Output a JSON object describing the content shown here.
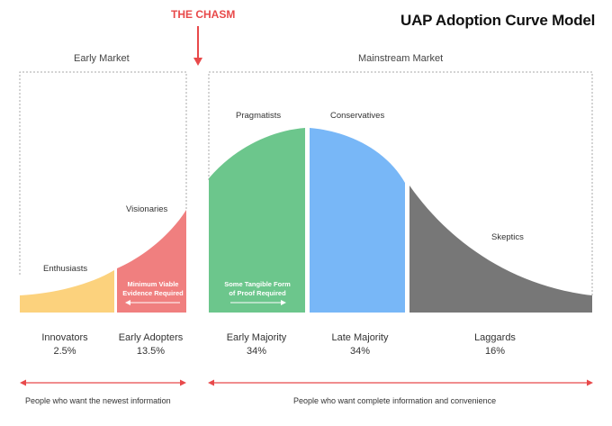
{
  "title": "UAP Adoption Curve Model",
  "chasm_label": "THE CHASM",
  "markets": {
    "early": "Early Market",
    "mainstream": "Mainstream Market"
  },
  "curve_labels": {
    "enthusiasts": "Enthusiasts",
    "visionaries": "Visionaries",
    "pragmatists": "Pragmatists",
    "conservatives": "Conservatives",
    "skeptics": "Skeptics"
  },
  "inner_labels": {
    "early_adopters_line1": "Minimum Viable",
    "early_adopters_line2": "Evidence Required",
    "early_majority_line1": "Some Tangible Form",
    "early_majority_line2": "of Proof Required"
  },
  "segments": [
    {
      "name": "Innovators",
      "pct": "2.5%"
    },
    {
      "name": "Early Adopters",
      "pct": "13.5%"
    },
    {
      "name": "Early Majority",
      "pct": "34%"
    },
    {
      "name": "Late Majority",
      "pct": "34%"
    },
    {
      "name": "Laggards",
      "pct": "16%"
    }
  ],
  "audiences": {
    "left": "People who want the newest information",
    "right": "People who want complete information and convenience"
  },
  "colors": {
    "innovators": "#fcd27d",
    "early_adopters": "#f07f7f",
    "early_majority": "#6cc68c",
    "late_majority": "#78b7f7",
    "laggards": "#777777",
    "accent": "#e8494a"
  }
}
